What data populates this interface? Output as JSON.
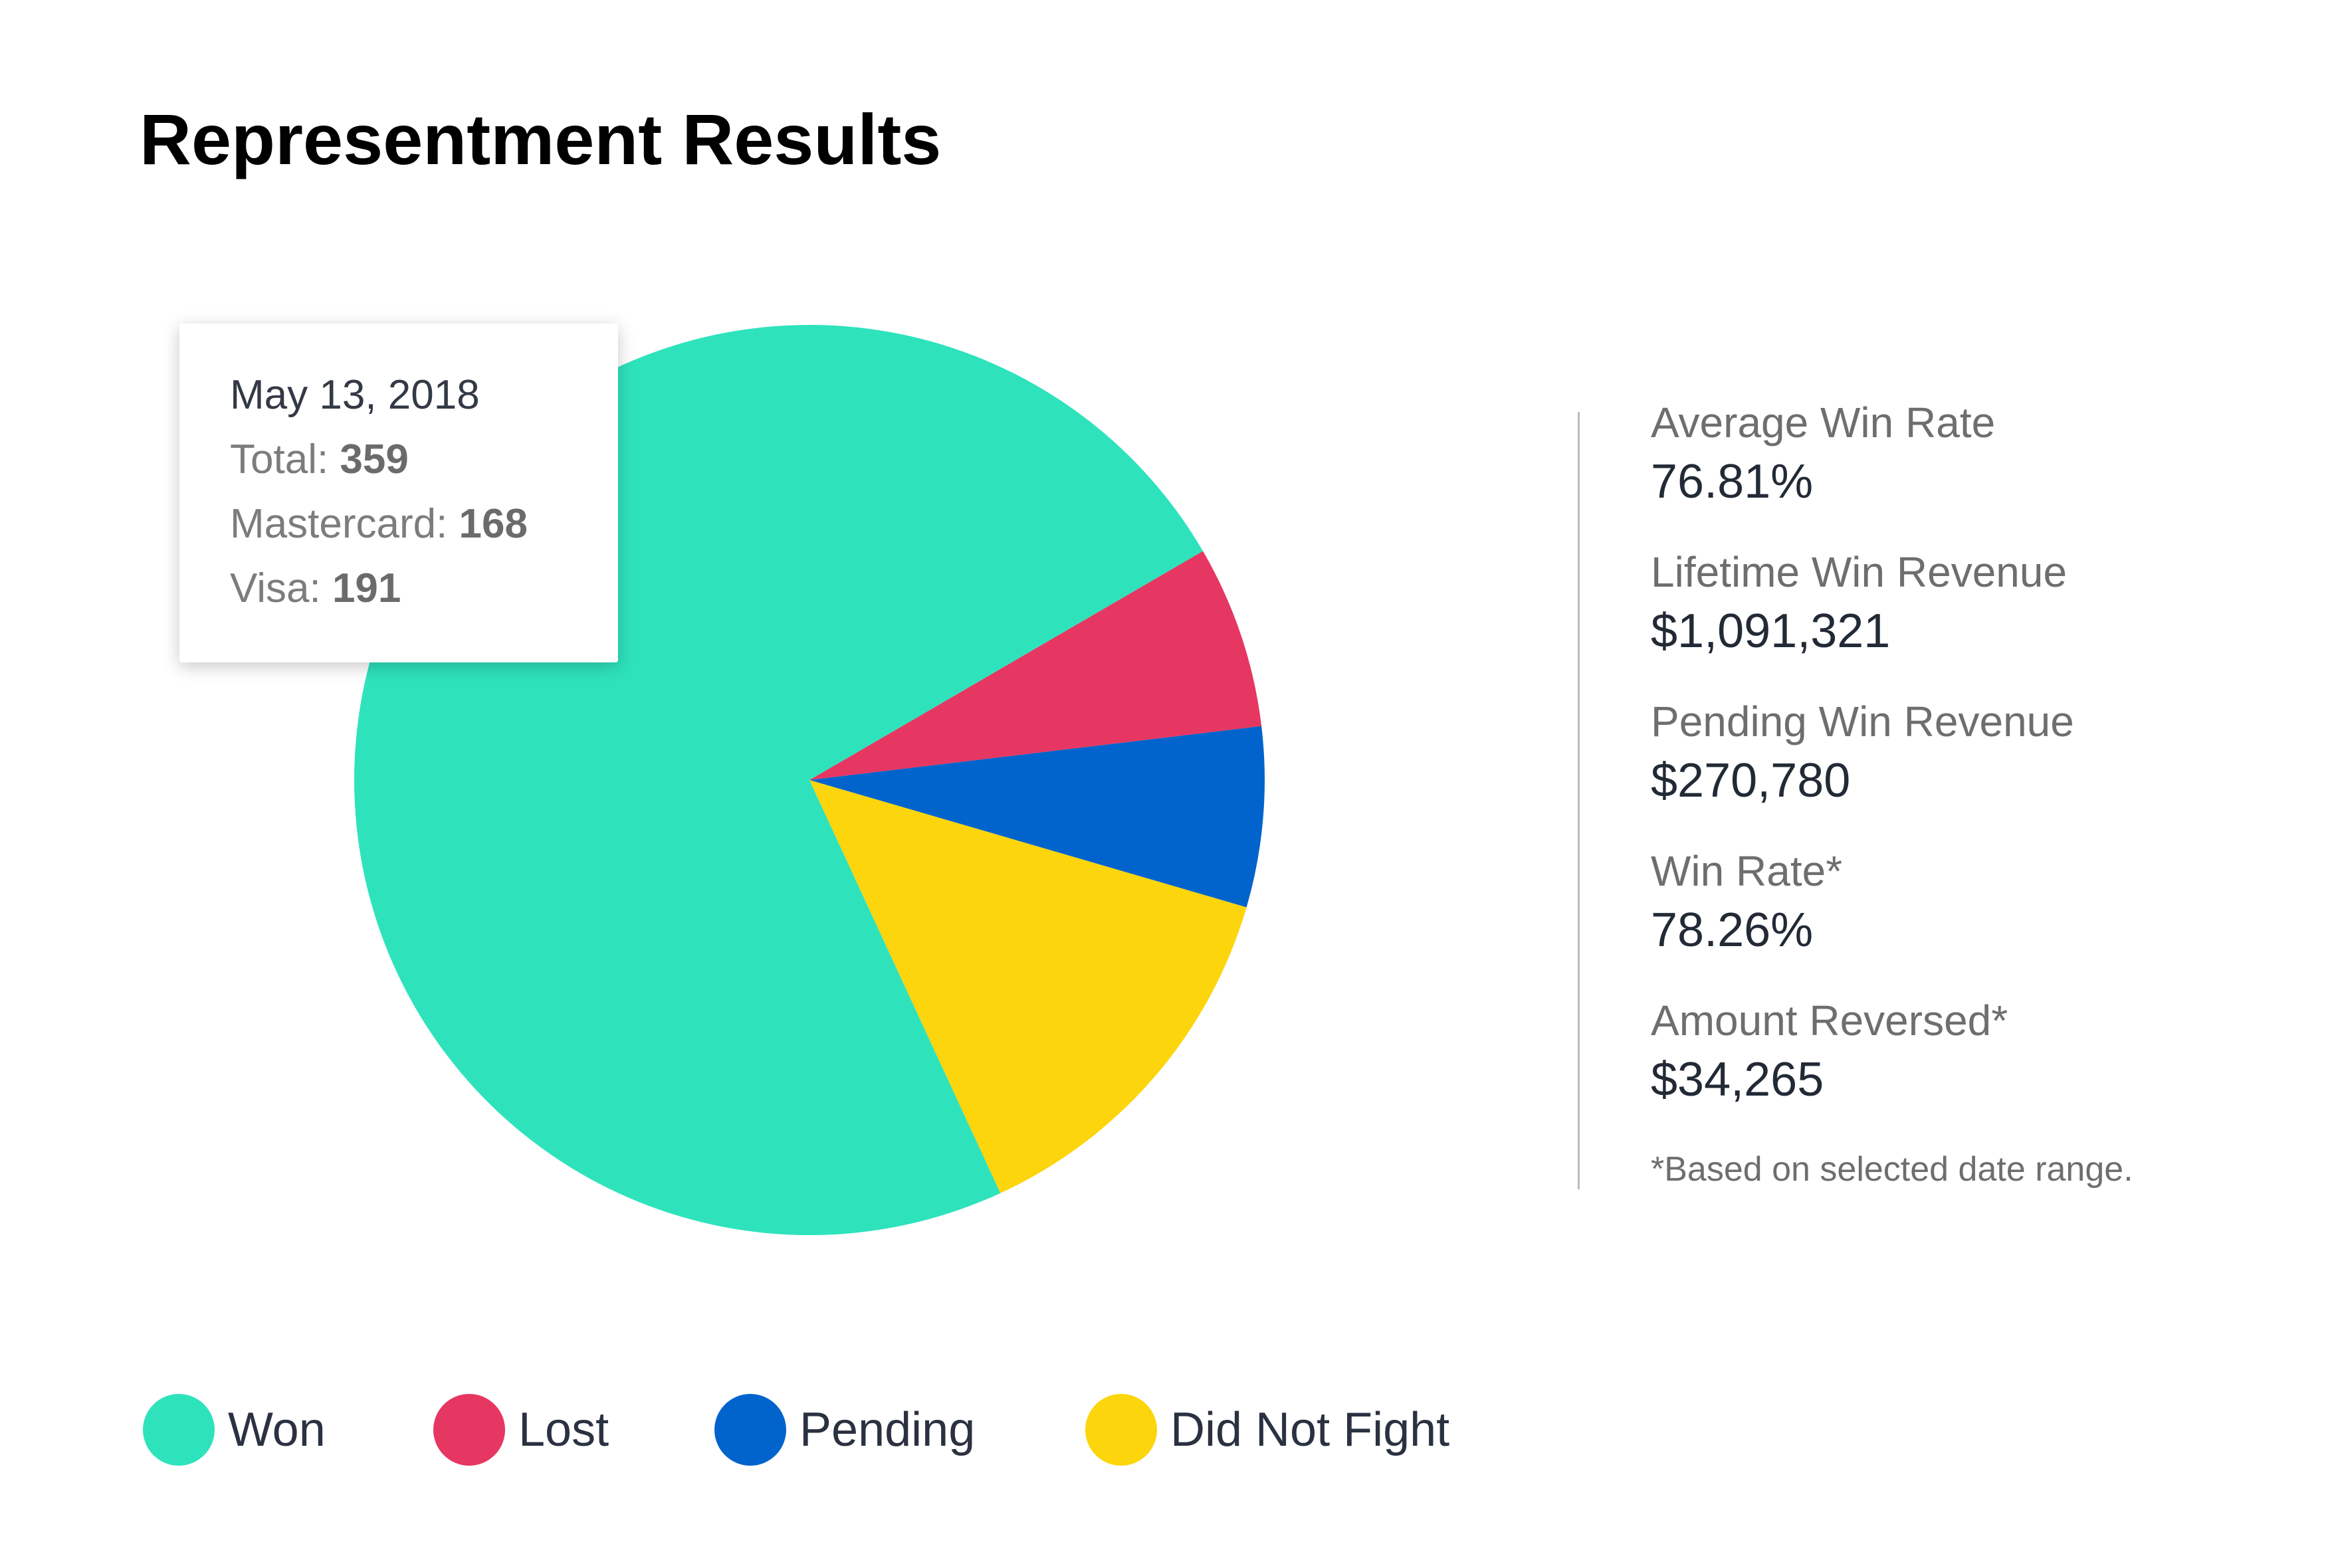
{
  "title": "Representment Results",
  "chart_data": {
    "type": "pie",
    "title": "Representment Results",
    "categories": [
      "Won",
      "Lost",
      "Pending",
      "Did Not Fight"
    ],
    "series": [
      {
        "values": [
          73.5,
          6.5,
          6.4,
          13.6
        ]
      }
    ],
    "colors": [
      "#2ee3bc",
      "#e63662",
      "#0064cc",
      "#fcd50c"
    ],
    "legend_position": "bottom-left"
  },
  "tooltip": {
    "date": "May 13, 2018",
    "total_label": "Total: ",
    "total_value": "359",
    "mastercard_label": "Mastercard: ",
    "mastercard_value": "168",
    "visa_label": "Visa: ",
    "visa_value": "191"
  },
  "stats": [
    {
      "label": "Average Win Rate",
      "value": "76.81%"
    },
    {
      "label": "Lifetime Win Revenue",
      "value": "$1,091,321"
    },
    {
      "label": "Pending Win Revenue",
      "value": "$270,780"
    },
    {
      "label": "Win Rate*",
      "value": "78.26%"
    },
    {
      "label": "Amount Reversed*",
      "value": "$34,265"
    }
  ],
  "footnote": "*Based on selected date range.",
  "legend": [
    {
      "label": "Won",
      "color": "#2ee3bc"
    },
    {
      "label": "Lost",
      "color": "#e63662"
    },
    {
      "label": "Pending",
      "color": "#0064cc"
    },
    {
      "label": "Did Not Fight",
      "color": "#fcd50c"
    }
  ]
}
